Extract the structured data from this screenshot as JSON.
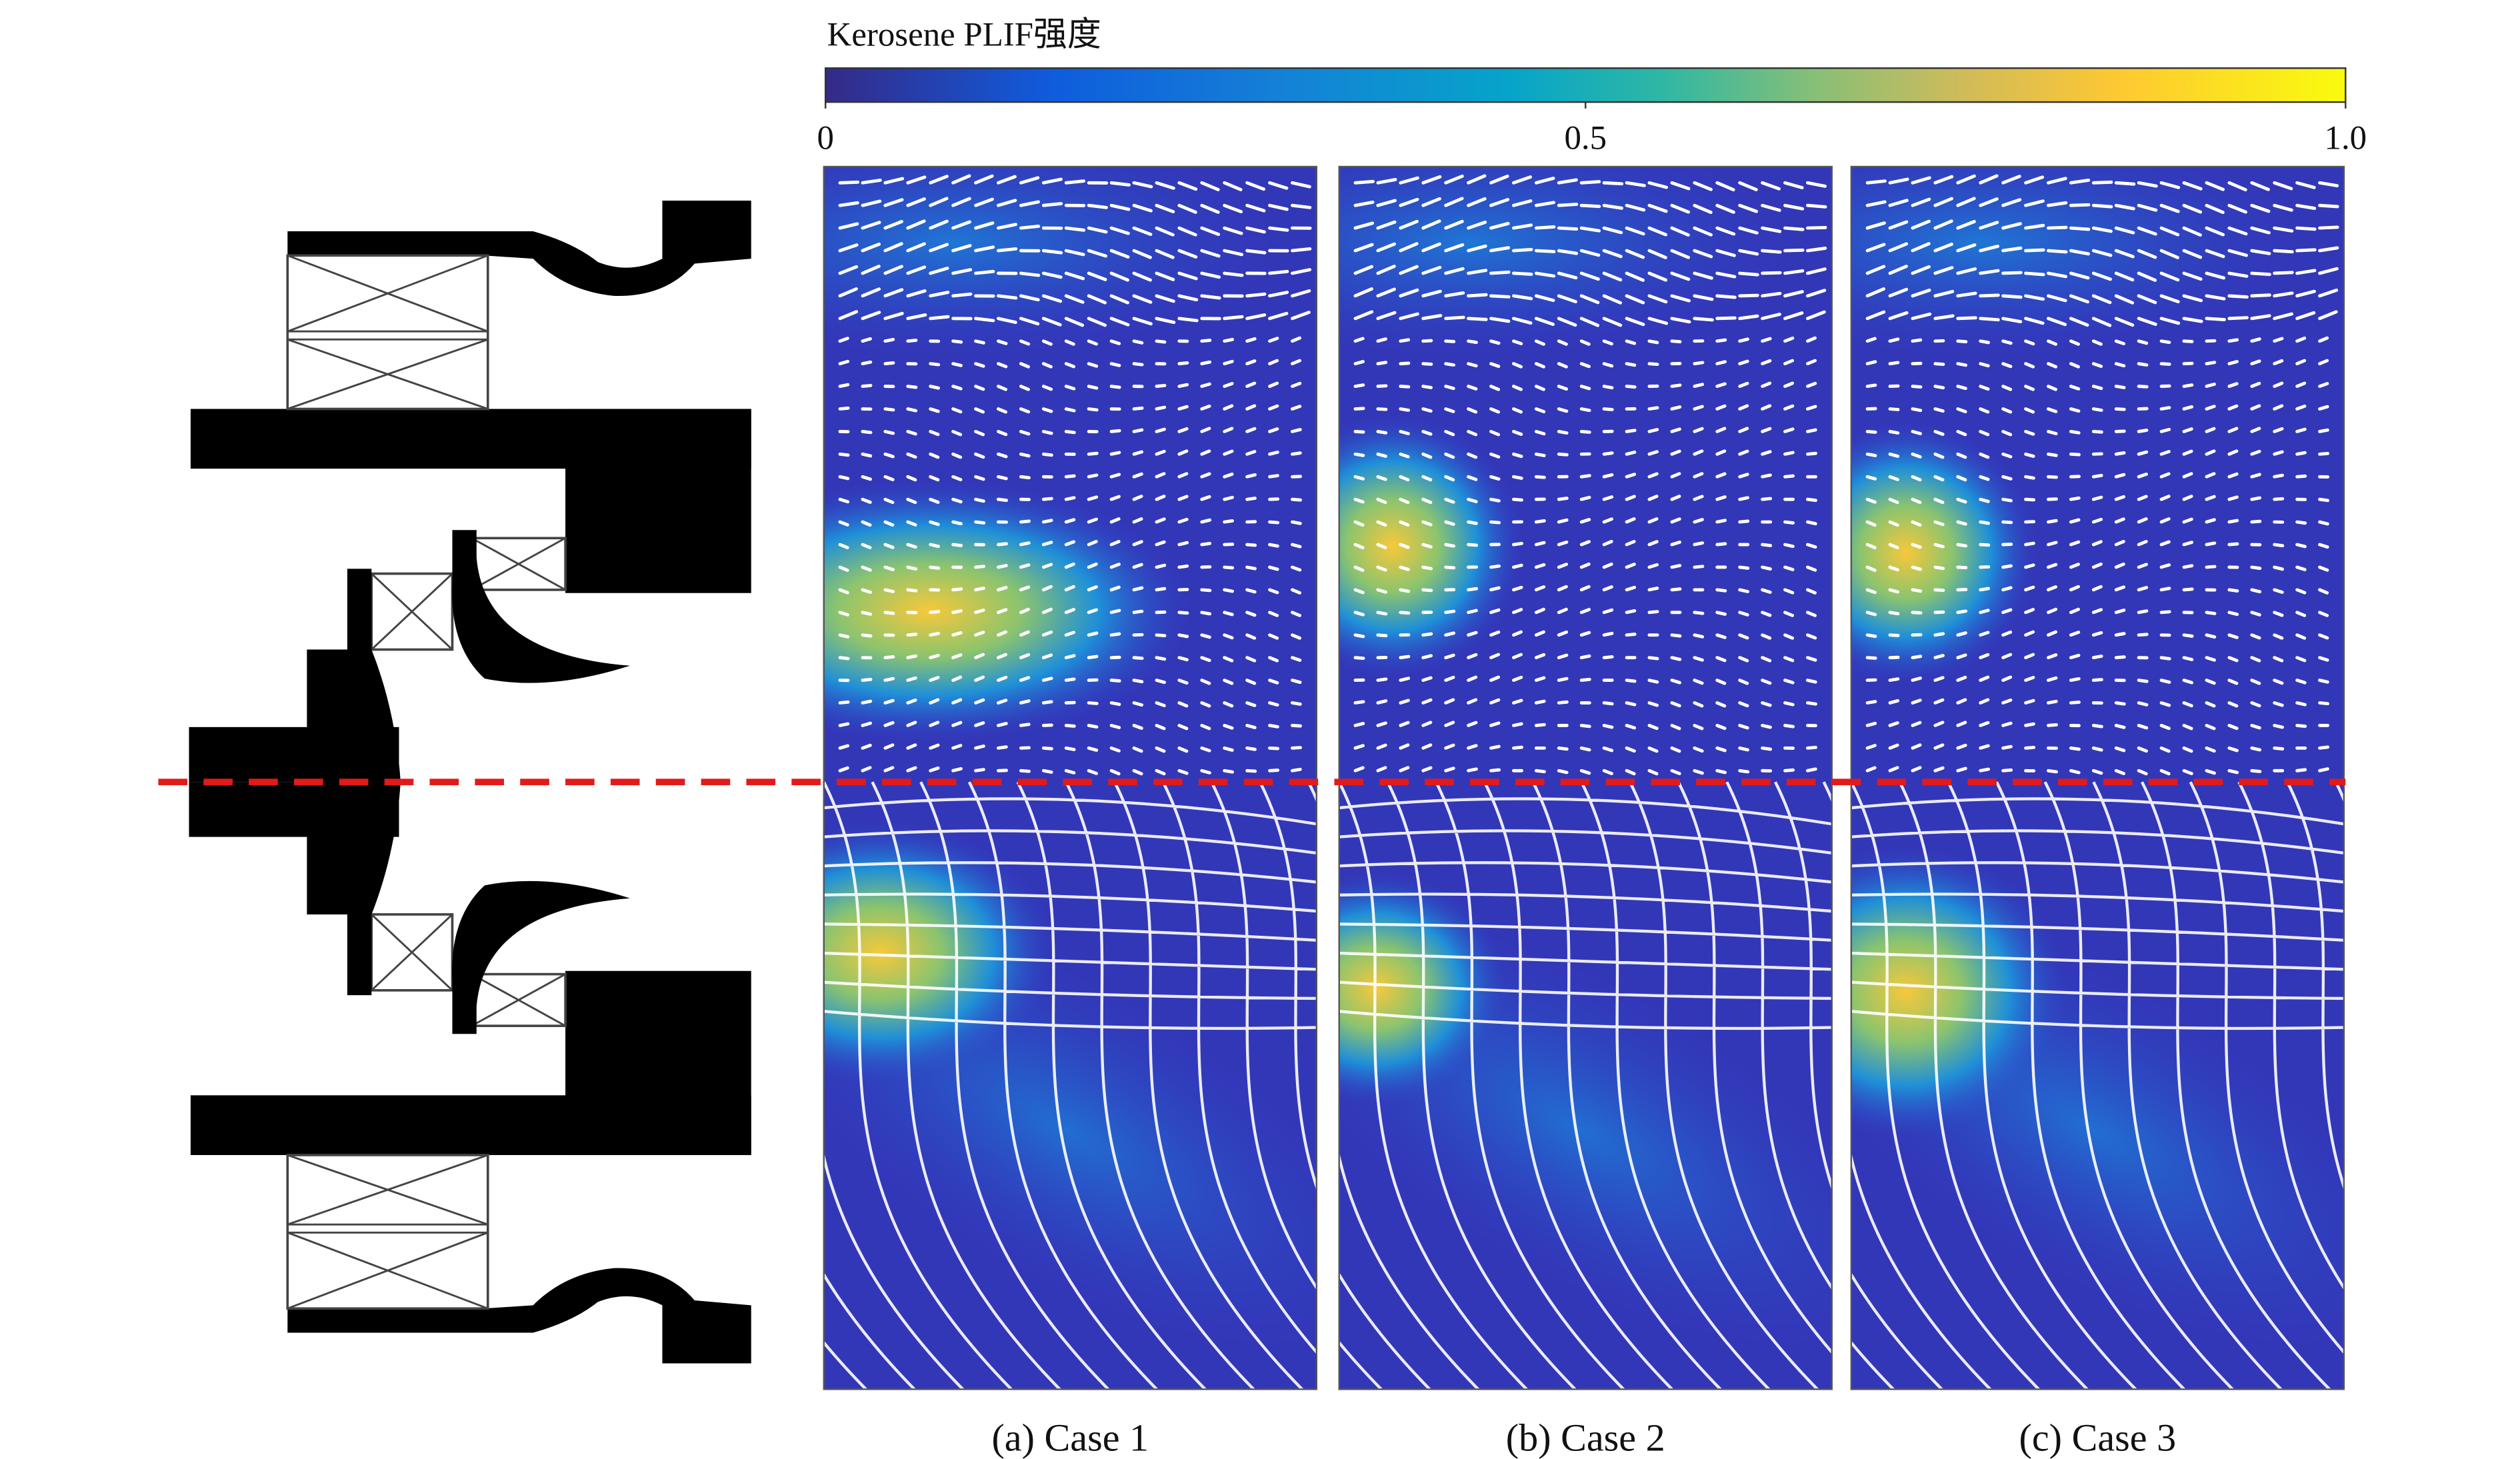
{
  "colorbar": {
    "title": "Kerosene PLIF强度",
    "range": [
      0,
      1
    ],
    "ticks": [
      0,
      0.5,
      {
        "value": 1,
        "label": "1.0"
      }
    ]
  },
  "panels": [
    {
      "caption": "(a) Case 1"
    },
    {
      "caption": "(b) Case 2"
    },
    {
      "caption": "(c) Case 3"
    }
  ]
}
